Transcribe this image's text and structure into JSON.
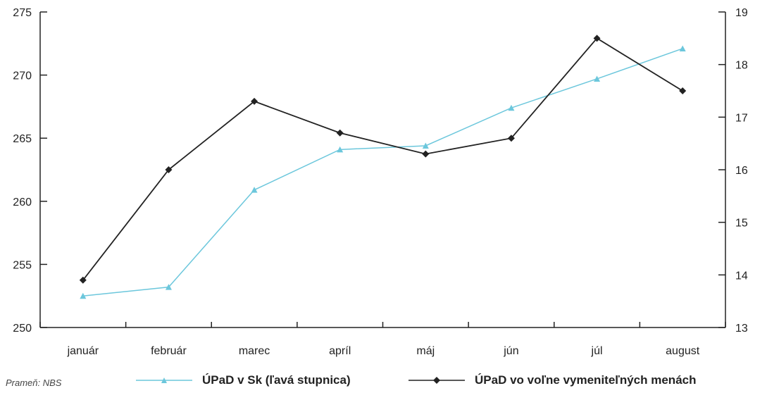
{
  "chart_data": {
    "type": "line",
    "categories": [
      "január",
      "február",
      "marec",
      "apríl",
      "máj",
      "jún",
      "júl",
      "august"
    ],
    "y_left": {
      "ylim": [
        250,
        275
      ],
      "ticks": [
        250,
        255,
        260,
        265,
        270,
        275
      ]
    },
    "y_right": {
      "ylim": [
        13,
        19
      ],
      "ticks": [
        13,
        14,
        15,
        16,
        17,
        18,
        19
      ]
    },
    "series": [
      {
        "name": "ÚPaD v Sk (ľavá stupnica)",
        "axis": "left",
        "color": "#6cc7dc",
        "marker": "triangle",
        "values": [
          252.5,
          253.2,
          260.9,
          264.1,
          264.4,
          267.4,
          269.7,
          272.1
        ]
      },
      {
        "name": "ÚPaD vo voľne vymeniteľných menách",
        "axis": "right",
        "color": "#222222",
        "marker": "diamond",
        "values": [
          13.9,
          16.0,
          17.3,
          16.7,
          16.3,
          16.6,
          18.5,
          17.5
        ]
      }
    ]
  },
  "source_note": "Prameň: NBS"
}
